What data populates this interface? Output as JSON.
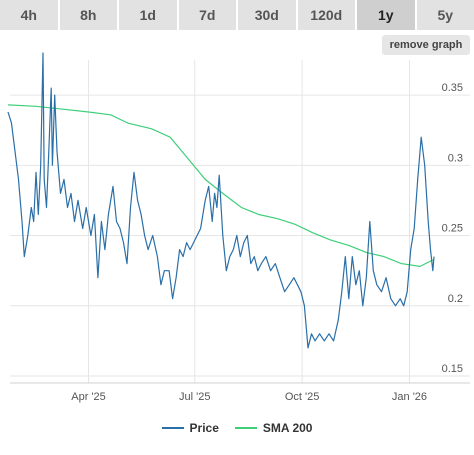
{
  "tabs": [
    {
      "label": "4h"
    },
    {
      "label": "8h"
    },
    {
      "label": "1d"
    },
    {
      "label": "7d"
    },
    {
      "label": "30d"
    },
    {
      "label": "120d"
    },
    {
      "label": "1y",
      "active": true
    },
    {
      "label": "5y"
    }
  ],
  "remove_button": "remove graph",
  "colors": {
    "price": "#2a6fa8",
    "sma": "#3ecf7a",
    "grid": "#e6e6e6",
    "axis_text": "#555555"
  },
  "chart_data": {
    "type": "line",
    "x_tick_labels": [
      "Apr '25",
      "Jul '25",
      "Oct '25",
      "Jan '26"
    ],
    "x_ticks": [
      {
        "label": "Apr '25",
        "date": "2025-04-01"
      },
      {
        "label": "Jul '25",
        "date": "2025-07-01"
      },
      {
        "label": "Oct '25",
        "date": "2025-10-01"
      },
      {
        "label": "Jan '26",
        "date": "2026-01-01"
      }
    ],
    "xlim": [
      "2025-01-22",
      "2026-01-22"
    ],
    "y_tick_labels": [
      "0.35",
      "0.3",
      "0.25",
      "0.2",
      "0.15"
    ],
    "y_ticks": [
      0.35,
      0.3,
      0.25,
      0.2,
      0.15
    ],
    "ylim": [
      0.145,
      0.375
    ],
    "grid": true,
    "legend_position": "bottom-center",
    "series": [
      {
        "name": "Price",
        "points": [
          [
            "2025-01-22",
            0.338
          ],
          [
            "2025-01-25",
            0.33
          ],
          [
            "2025-01-28",
            0.31
          ],
          [
            "2025-01-31",
            0.29
          ],
          [
            "2025-02-03",
            0.26
          ],
          [
            "2025-02-05",
            0.235
          ],
          [
            "2025-02-08",
            0.25
          ],
          [
            "2025-02-11",
            0.27
          ],
          [
            "2025-02-13",
            0.26
          ],
          [
            "2025-02-15",
            0.295
          ],
          [
            "2025-02-17",
            0.265
          ],
          [
            "2025-02-19",
            0.3
          ],
          [
            "2025-02-21",
            0.38
          ],
          [
            "2025-02-22",
            0.29
          ],
          [
            "2025-02-24",
            0.27
          ],
          [
            "2025-02-26",
            0.31
          ],
          [
            "2025-02-28",
            0.355
          ],
          [
            "2025-03-01",
            0.3
          ],
          [
            "2025-03-03",
            0.35
          ],
          [
            "2025-03-05",
            0.31
          ],
          [
            "2025-03-08",
            0.28
          ],
          [
            "2025-03-11",
            0.29
          ],
          [
            "2025-03-14",
            0.27
          ],
          [
            "2025-03-17",
            0.28
          ],
          [
            "2025-03-20",
            0.26
          ],
          [
            "2025-03-23",
            0.275
          ],
          [
            "2025-03-27",
            0.255
          ],
          [
            "2025-03-30",
            0.27
          ],
          [
            "2025-04-03",
            0.25
          ],
          [
            "2025-04-06",
            0.265
          ],
          [
            "2025-04-09",
            0.22
          ],
          [
            "2025-04-12",
            0.26
          ],
          [
            "2025-04-15",
            0.24
          ],
          [
            "2025-04-18",
            0.265
          ],
          [
            "2025-04-22",
            0.285
          ],
          [
            "2025-04-25",
            0.26
          ],
          [
            "2025-04-28",
            0.255
          ],
          [
            "2025-05-01",
            0.245
          ],
          [
            "2025-05-04",
            0.23
          ],
          [
            "2025-05-07",
            0.27
          ],
          [
            "2025-05-10",
            0.295
          ],
          [
            "2025-05-13",
            0.275
          ],
          [
            "2025-05-16",
            0.265
          ],
          [
            "2025-05-19",
            0.25
          ],
          [
            "2025-05-22",
            0.24
          ],
          [
            "2025-05-26",
            0.25
          ],
          [
            "2025-05-30",
            0.235
          ],
          [
            "2025-06-02",
            0.215
          ],
          [
            "2025-06-05",
            0.225
          ],
          [
            "2025-06-09",
            0.225
          ],
          [
            "2025-06-12",
            0.205
          ],
          [
            "2025-06-15",
            0.22
          ],
          [
            "2025-06-18",
            0.24
          ],
          [
            "2025-06-21",
            0.235
          ],
          [
            "2025-06-24",
            0.245
          ],
          [
            "2025-06-27",
            0.24
          ],
          [
            "2025-06-30",
            0.245
          ],
          [
            "2025-07-03",
            0.25
          ],
          [
            "2025-07-06",
            0.255
          ],
          [
            "2025-07-10",
            0.275
          ],
          [
            "2025-07-13",
            0.285
          ],
          [
            "2025-07-16",
            0.26
          ],
          [
            "2025-07-18",
            0.28
          ],
          [
            "2025-07-20",
            0.27
          ],
          [
            "2025-07-22",
            0.293
          ],
          [
            "2025-07-25",
            0.25
          ],
          [
            "2025-07-28",
            0.225
          ],
          [
            "2025-07-31",
            0.235
          ],
          [
            "2025-08-03",
            0.24
          ],
          [
            "2025-08-06",
            0.25
          ],
          [
            "2025-08-09",
            0.235
          ],
          [
            "2025-08-12",
            0.245
          ],
          [
            "2025-08-15",
            0.25
          ],
          [
            "2025-08-18",
            0.23
          ],
          [
            "2025-08-21",
            0.235
          ],
          [
            "2025-08-24",
            0.225
          ],
          [
            "2025-08-27",
            0.23
          ],
          [
            "2025-08-31",
            0.235
          ],
          [
            "2025-09-04",
            0.225
          ],
          [
            "2025-09-08",
            0.23
          ],
          [
            "2025-09-12",
            0.22
          ],
          [
            "2025-09-16",
            0.21
          ],
          [
            "2025-09-20",
            0.215
          ],
          [
            "2025-09-24",
            0.22
          ],
          [
            "2025-09-27",
            0.215
          ],
          [
            "2025-09-30",
            0.21
          ],
          [
            "2025-10-03",
            0.2
          ],
          [
            "2025-10-06",
            0.17
          ],
          [
            "2025-10-09",
            0.18
          ],
          [
            "2025-10-12",
            0.175
          ],
          [
            "2025-10-16",
            0.18
          ],
          [
            "2025-10-20",
            0.175
          ],
          [
            "2025-10-24",
            0.18
          ],
          [
            "2025-10-28",
            0.175
          ],
          [
            "2025-11-01",
            0.19
          ],
          [
            "2025-11-04",
            0.21
          ],
          [
            "2025-11-07",
            0.235
          ],
          [
            "2025-11-10",
            0.205
          ],
          [
            "2025-11-13",
            0.235
          ],
          [
            "2025-11-16",
            0.215
          ],
          [
            "2025-11-19",
            0.225
          ],
          [
            "2025-11-22",
            0.2
          ],
          [
            "2025-11-25",
            0.22
          ],
          [
            "2025-11-28",
            0.26
          ],
          [
            "2025-12-01",
            0.225
          ],
          [
            "2025-12-04",
            0.215
          ],
          [
            "2025-12-08",
            0.21
          ],
          [
            "2025-12-12",
            0.22
          ],
          [
            "2025-12-16",
            0.205
          ],
          [
            "2025-12-20",
            0.2
          ],
          [
            "2025-12-24",
            0.205
          ],
          [
            "2025-12-27",
            0.2
          ],
          [
            "2025-12-30",
            0.21
          ],
          [
            "2026-01-02",
            0.24
          ],
          [
            "2026-01-05",
            0.255
          ],
          [
            "2026-01-08",
            0.29
          ],
          [
            "2026-01-11",
            0.32
          ],
          [
            "2026-01-14",
            0.3
          ],
          [
            "2026-01-17",
            0.26
          ],
          [
            "2026-01-19",
            0.24
          ],
          [
            "2026-01-21",
            0.225
          ],
          [
            "2026-01-22",
            0.235
          ]
        ]
      },
      {
        "name": "SMA 200",
        "points": [
          [
            "2025-01-22",
            0.343
          ],
          [
            "2025-02-15",
            0.342
          ],
          [
            "2025-03-10",
            0.34
          ],
          [
            "2025-04-01",
            0.338
          ],
          [
            "2025-04-20",
            0.336
          ],
          [
            "2025-05-05",
            0.33
          ],
          [
            "2025-05-25",
            0.326
          ],
          [
            "2025-06-10",
            0.32
          ],
          [
            "2025-06-25",
            0.305
          ],
          [
            "2025-07-10",
            0.29
          ],
          [
            "2025-07-25",
            0.28
          ],
          [
            "2025-08-10",
            0.27
          ],
          [
            "2025-08-25",
            0.265
          ],
          [
            "2025-09-10",
            0.262
          ],
          [
            "2025-09-25",
            0.258
          ],
          [
            "2025-10-10",
            0.252
          ],
          [
            "2025-10-25",
            0.247
          ],
          [
            "2025-11-10",
            0.243
          ],
          [
            "2025-11-25",
            0.238
          ],
          [
            "2025-12-10",
            0.235
          ],
          [
            "2025-12-25",
            0.23
          ],
          [
            "2026-01-10",
            0.228
          ],
          [
            "2026-01-22",
            0.233
          ]
        ]
      }
    ]
  }
}
